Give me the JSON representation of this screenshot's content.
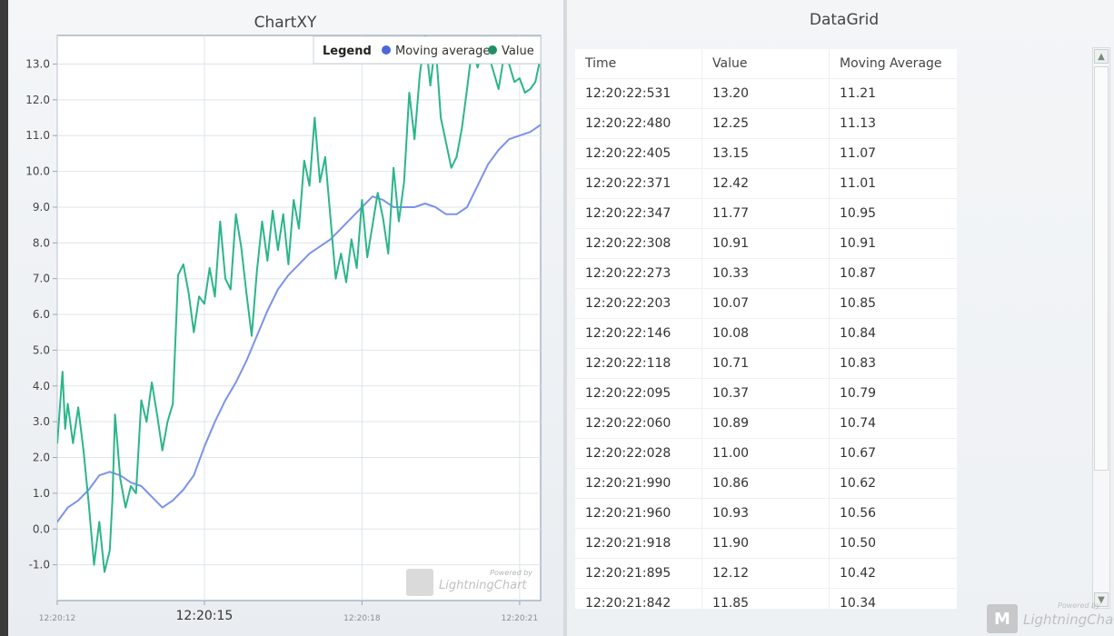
{
  "chart_panel": {
    "title": "ChartXY",
    "watermark_small": "Powered by",
    "watermark_brand": "LightningChart"
  },
  "grid_panel": {
    "title": "DataGrid",
    "columns": [
      "Time",
      "Value",
      "Moving Average"
    ],
    "rows": [
      [
        "12:20:22:531",
        "13.20",
        "11.21"
      ],
      [
        "12:20:22:480",
        "12.25",
        "11.13"
      ],
      [
        "12:20:22:405",
        "13.15",
        "11.07"
      ],
      [
        "12:20:22:371",
        "12.42",
        "11.01"
      ],
      [
        "12:20:22:347",
        "11.77",
        "10.95"
      ],
      [
        "12:20:22:308",
        "10.91",
        "10.91"
      ],
      [
        "12:20:22:273",
        "10.33",
        "10.87"
      ],
      [
        "12:20:22:203",
        "10.07",
        "10.85"
      ],
      [
        "12:20:22:146",
        "10.08",
        "10.84"
      ],
      [
        "12:20:22:118",
        "10.71",
        "10.83"
      ],
      [
        "12:20:22:095",
        "10.37",
        "10.79"
      ],
      [
        "12:20:22:060",
        "10.89",
        "10.74"
      ],
      [
        "12:20:22:028",
        "11.00",
        "10.67"
      ],
      [
        "12:20:21:990",
        "10.86",
        "10.62"
      ],
      [
        "12:20:21:960",
        "10.93",
        "10.56"
      ],
      [
        "12:20:21:918",
        "11.90",
        "10.50"
      ],
      [
        "12:20:21:895",
        "12.12",
        "10.42"
      ],
      [
        "12:20:21:842",
        "11.85",
        "10.34"
      ]
    ],
    "scroll_up_icon": "▲",
    "scroll_down_icon": "▼",
    "watermark_small": "Powered by",
    "watermark_brand": "LightningChart"
  },
  "colors": {
    "value_series": "#2bb58a",
    "moving_average_series": "#7b93ea",
    "legend_ma_dot": "#4a68d8",
    "legend_value_dot": "#1e8f67"
  },
  "chart_data": {
    "type": "line",
    "title": "",
    "xlabel": "",
    "ylabel": "",
    "x_unit": "seconds (time of day)",
    "xlim": [
      12.2,
      21.4
    ],
    "ylim": [
      -2.0,
      13.8
    ],
    "x_ticks": [
      {
        "value": 12.2,
        "label": "12:20:12",
        "major": false
      },
      {
        "value": 15.0,
        "label": "12:20:15",
        "major": true
      },
      {
        "value": 18.0,
        "label": "12:20:18",
        "major": false
      },
      {
        "value": 21.0,
        "label": "12:20:21",
        "major": false
      }
    ],
    "y_ticks": [
      -1.0,
      0.0,
      1.0,
      2.0,
      3.0,
      4.0,
      5.0,
      6.0,
      7.0,
      8.0,
      9.0,
      10.0,
      11.0,
      12.0,
      13.0
    ],
    "y_tick_labels": [
      "-1.0",
      "0.0",
      "1.0",
      "2.0",
      "3.0",
      "4.0",
      "5.0",
      "6.0",
      "7.0",
      "8.0",
      "9.0",
      "10.0",
      "11.0",
      "12.0",
      "13.0"
    ],
    "legend": {
      "title": "Legend",
      "placement": "top-right",
      "items": [
        "Moving average",
        "Value"
      ]
    },
    "grid": true,
    "series": [
      {
        "name": "Moving average",
        "color": "#7b93ea",
        "x": [
          12.2,
          12.4,
          12.6,
          12.8,
          13.0,
          13.2,
          13.4,
          13.6,
          13.8,
          14.0,
          14.2,
          14.4,
          14.6,
          14.8,
          15.0,
          15.2,
          15.4,
          15.6,
          15.8,
          16.0,
          16.2,
          16.4,
          16.6,
          16.8,
          17.0,
          17.2,
          17.4,
          17.6,
          17.8,
          18.0,
          18.2,
          18.4,
          18.6,
          18.8,
          19.0,
          19.2,
          19.4,
          19.6,
          19.8,
          20.0,
          20.2,
          20.4,
          20.6,
          20.8,
          21.0,
          21.2,
          21.4
        ],
        "values": [
          0.2,
          0.6,
          0.8,
          1.1,
          1.5,
          1.6,
          1.5,
          1.3,
          1.2,
          0.9,
          0.6,
          0.8,
          1.1,
          1.5,
          2.3,
          3.0,
          3.6,
          4.1,
          4.7,
          5.4,
          6.1,
          6.7,
          7.1,
          7.4,
          7.7,
          7.9,
          8.1,
          8.4,
          8.7,
          9.0,
          9.3,
          9.2,
          9.0,
          9.0,
          9.0,
          9.1,
          9.0,
          8.8,
          8.8,
          9.0,
          9.6,
          10.2,
          10.6,
          10.9,
          11.0,
          11.1,
          11.3
        ]
      },
      {
        "name": "Value",
        "color": "#2bb58a",
        "x": [
          12.2,
          12.3,
          12.35,
          12.4,
          12.5,
          12.6,
          12.7,
          12.8,
          12.9,
          13.0,
          13.1,
          13.2,
          13.25,
          13.3,
          13.4,
          13.5,
          13.6,
          13.7,
          13.8,
          13.9,
          14.0,
          14.1,
          14.2,
          14.3,
          14.4,
          14.5,
          14.6,
          14.7,
          14.8,
          14.9,
          15.0,
          15.05,
          15.1,
          15.2,
          15.3,
          15.4,
          15.5,
          15.6,
          15.7,
          15.8,
          15.9,
          16.0,
          16.1,
          16.2,
          16.3,
          16.4,
          16.5,
          16.6,
          16.7,
          16.8,
          16.9,
          17.0,
          17.1,
          17.2,
          17.3,
          17.4,
          17.5,
          17.6,
          17.7,
          17.8,
          17.9,
          18.0,
          18.1,
          18.2,
          18.3,
          18.4,
          18.5,
          18.6,
          18.7,
          18.8,
          18.9,
          19.0,
          19.1,
          19.2,
          19.3,
          19.4,
          19.5,
          19.6,
          19.7,
          19.8,
          19.9,
          20.0,
          20.1,
          20.2,
          20.3,
          20.4,
          20.5,
          20.6,
          20.7,
          20.8,
          20.9,
          21.0,
          21.1,
          21.2,
          21.3,
          21.4
        ],
        "values": [
          2.4,
          4.4,
          2.8,
          3.5,
          2.4,
          3.4,
          2.2,
          0.7,
          -1.0,
          0.2,
          -1.2,
          -0.6,
          0.8,
          3.2,
          1.4,
          0.6,
          1.2,
          1.0,
          3.6,
          3.0,
          4.1,
          3.2,
          2.2,
          3.0,
          3.5,
          7.1,
          7.4,
          6.6,
          5.5,
          6.5,
          6.3,
          6.8,
          7.3,
          6.5,
          8.6,
          7.0,
          6.7,
          8.8,
          7.9,
          6.6,
          5.4,
          7.2,
          8.6,
          7.5,
          8.9,
          7.8,
          8.8,
          7.4,
          9.2,
          8.4,
          10.3,
          9.6,
          11.5,
          9.7,
          10.4,
          8.7,
          7.0,
          7.7,
          6.9,
          8.1,
          7.3,
          9.2,
          7.6,
          8.5,
          9.4,
          8.7,
          7.7,
          10.1,
          8.6,
          9.7,
          12.2,
          10.9,
          12.7,
          13.8,
          12.4,
          13.6,
          11.5,
          10.8,
          10.1,
          10.4,
          11.2,
          12.3,
          13.5,
          12.9,
          13.4,
          13.3,
          12.8,
          12.3,
          13.2,
          13.0,
          12.5,
          12.6,
          12.2,
          12.3,
          12.5,
          13.2
        ]
      }
    ]
  }
}
